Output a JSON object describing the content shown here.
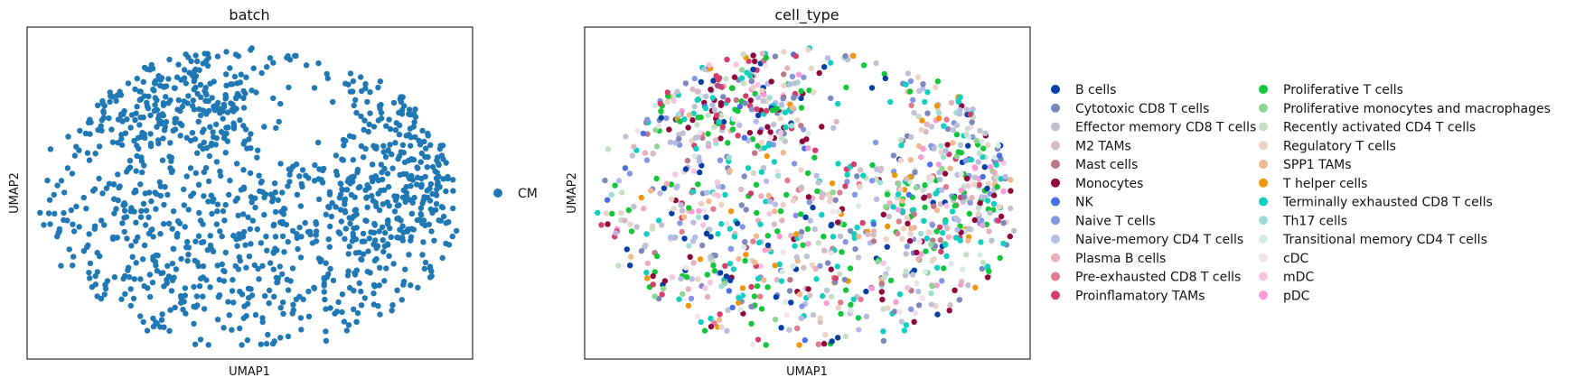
{
  "chart_data": [
    {
      "type": "scatter",
      "title": "batch",
      "xlabel": "UMAP1",
      "ylabel": "UMAP2",
      "grid": false,
      "legend_position": "right",
      "series": [
        {
          "name": "CM",
          "color": "#1f77b4",
          "point_count": 1200
        }
      ]
    },
    {
      "type": "scatter",
      "title": "cell_type",
      "xlabel": "UMAP1",
      "ylabel": "UMAP2",
      "grid": false,
      "legend_position": "right",
      "legend_columns": 2,
      "series": [
        {
          "name": "B cells",
          "color": "#023fa5"
        },
        {
          "name": "Cytotoxic CD8 T cells",
          "color": "#7d87b9"
        },
        {
          "name": "Effector memory CD8 T cells",
          "color": "#bec1d4"
        },
        {
          "name": "M2 TAMs",
          "color": "#d6bcc0"
        },
        {
          "name": "Mast cells",
          "color": "#bb7784"
        },
        {
          "name": "Monocytes",
          "color": "#8e063b"
        },
        {
          "name": "NK",
          "color": "#4a6fe3"
        },
        {
          "name": "Naive T cells",
          "color": "#8595e1"
        },
        {
          "name": "Naive-memory CD4 T cells",
          "color": "#b5bbe3"
        },
        {
          "name": "Plasma B cells",
          "color": "#e6afb9"
        },
        {
          "name": "Pre-exhausted CD8 T cells",
          "color": "#e07b91"
        },
        {
          "name": "Proinflamatory TAMs",
          "color": "#d33f6a"
        },
        {
          "name": "Proliferative T cells",
          "color": "#11c638"
        },
        {
          "name": "Proliferative monocytes and macrophages",
          "color": "#8dd593"
        },
        {
          "name": "Recently activated CD4 T cells",
          "color": "#c6dec7"
        },
        {
          "name": "Regulatory T cells",
          "color": "#ead3c6"
        },
        {
          "name": "SPP1 TAMs",
          "color": "#f0b98d"
        },
        {
          "name": "T helper cells",
          "color": "#ef9708"
        },
        {
          "name": "Terminally exhausted CD8 T cells",
          "color": "#0fcfc0"
        },
        {
          "name": "Th17 cells",
          "color": "#9cded6"
        },
        {
          "name": "Transitional memory CD4 T cells",
          "color": "#d5eae7"
        },
        {
          "name": "cDC",
          "color": "#f3e1eb"
        },
        {
          "name": "mDC",
          "color": "#f6c4e1"
        },
        {
          "name": "pDC",
          "color": "#f79cd4"
        }
      ]
    }
  ]
}
